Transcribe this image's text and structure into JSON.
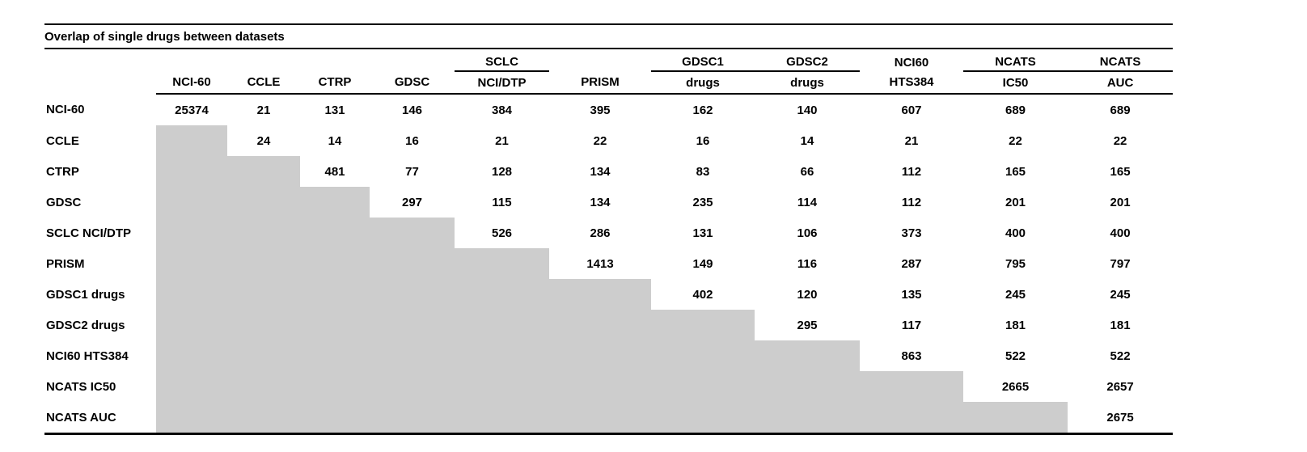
{
  "chart_data": {
    "type": "table",
    "title": "Overlap of single drugs between datasets",
    "column_group_labels": [
      "",
      "",
      "",
      "",
      "SCLC",
      "",
      "GDSC1",
      "GDSC2",
      "NCI60",
      "NCATS",
      "NCATS"
    ],
    "column_labels": [
      "NCI-60",
      "CCLE",
      "CTRP",
      "GDSC",
      "NCI/DTP",
      "PRISM",
      "drugs",
      "drugs",
      "HTS384",
      "IC50",
      "AUC"
    ],
    "rows": [
      {
        "label": "NCI-60",
        "values": [
          25374,
          21,
          131,
          146,
          384,
          395,
          162,
          140,
          607,
          689,
          689
        ]
      },
      {
        "label": "CCLE",
        "values": [
          null,
          24,
          14,
          16,
          21,
          22,
          16,
          14,
          21,
          22,
          22
        ]
      },
      {
        "label": "CTRP",
        "values": [
          null,
          null,
          481,
          77,
          128,
          134,
          83,
          66,
          112,
          165,
          165
        ]
      },
      {
        "label": "GDSC",
        "values": [
          null,
          null,
          null,
          297,
          115,
          134,
          235,
          114,
          112,
          201,
          201
        ]
      },
      {
        "label": "SCLC NCI/DTP",
        "values": [
          null,
          null,
          null,
          null,
          526,
          286,
          131,
          106,
          373,
          400,
          400
        ]
      },
      {
        "label": "PRISM",
        "values": [
          null,
          null,
          null,
          null,
          null,
          1413,
          149,
          116,
          287,
          795,
          797
        ]
      },
      {
        "label": "GDSC1 drugs",
        "values": [
          null,
          null,
          null,
          null,
          null,
          null,
          402,
          120,
          135,
          245,
          245
        ]
      },
      {
        "label": "GDSC2 drugs",
        "values": [
          null,
          null,
          null,
          null,
          null,
          null,
          null,
          295,
          117,
          181,
          181
        ]
      },
      {
        "label": "NCI60 HTS384",
        "values": [
          null,
          null,
          null,
          null,
          null,
          null,
          null,
          null,
          863,
          522,
          522
        ]
      },
      {
        "label": "NCATS IC50",
        "values": [
          null,
          null,
          null,
          null,
          null,
          null,
          null,
          null,
          null,
          2665,
          2657
        ]
      },
      {
        "label": "NCATS AUC",
        "values": [
          null,
          null,
          null,
          null,
          null,
          null,
          null,
          null,
          null,
          null,
          2675
        ]
      }
    ],
    "shading": "lower_triangle_cells_shaded_gray",
    "layout": {
      "shaded_color": "#cdcdcd",
      "text_color": "#000000",
      "background_color": "#ffffff",
      "group_underlined_columns": [
        [
          4
        ],
        [
          6,
          7
        ],
        [
          9,
          10
        ]
      ]
    }
  }
}
